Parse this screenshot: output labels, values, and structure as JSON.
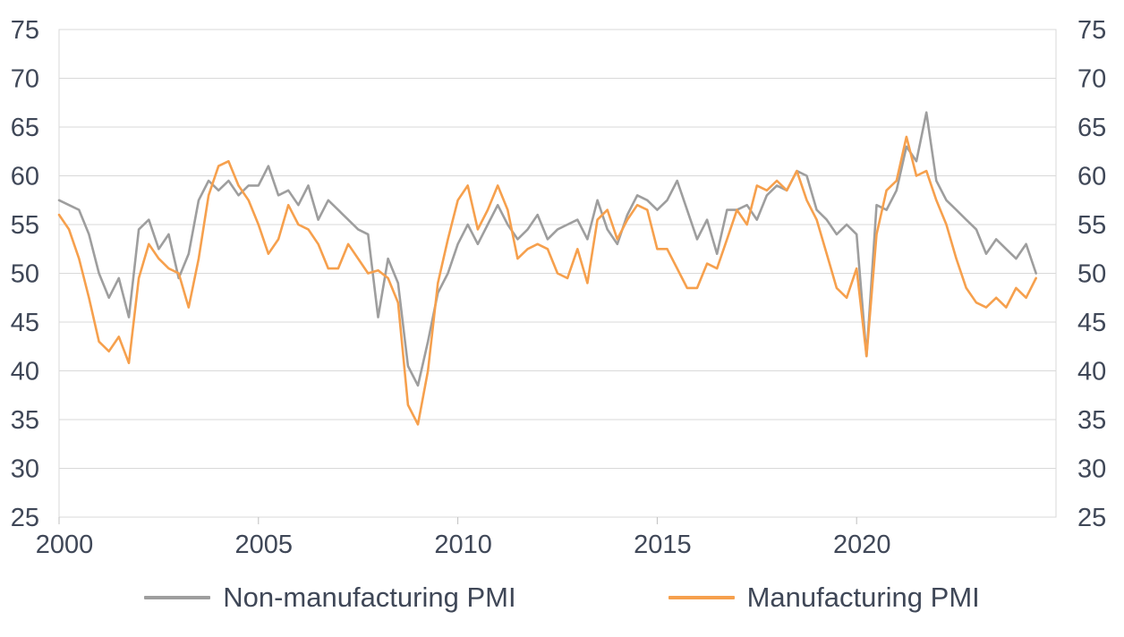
{
  "chart_data": {
    "type": "line",
    "title": "",
    "xlabel": "",
    "ylabel": "",
    "xlim": [
      2000,
      2025
    ],
    "ylim": [
      25,
      75
    ],
    "yticks": [
      25,
      30,
      35,
      40,
      45,
      50,
      55,
      60,
      65,
      70,
      75
    ],
    "xticks": [
      2000,
      2005,
      2010,
      2015,
      2020
    ],
    "grid": "horizontal",
    "right_axis": true,
    "legend_position": "bottom",
    "x_start": 2000,
    "x_step": 0.25,
    "colors": {
      "grid": "#d9d9d9",
      "border": "#d9d9d9",
      "tick": "#bfbfbf",
      "text": "#3f4757"
    },
    "series": [
      {
        "name": "Non-manufacturing PMI",
        "color": "#9e9e9e",
        "values": [
          57.5,
          57.0,
          56.5,
          54.0,
          50.0,
          47.5,
          49.5,
          45.5,
          54.5,
          55.5,
          52.5,
          54.0,
          49.5,
          52.0,
          57.5,
          59.5,
          58.5,
          59.5,
          58.0,
          59.0,
          59.0,
          61.0,
          58.0,
          58.5,
          57.0,
          59.0,
          55.5,
          57.5,
          56.5,
          55.5,
          54.5,
          54.0,
          45.5,
          51.5,
          49.0,
          40.5,
          38.5,
          43.0,
          48.0,
          50.0,
          53.0,
          55.0,
          53.0,
          55.0,
          57.0,
          55.0,
          53.5,
          54.5,
          56.0,
          53.5,
          54.5,
          55.0,
          55.5,
          53.5,
          57.5,
          54.5,
          53.0,
          56.0,
          58.0,
          57.5,
          56.5,
          57.5,
          59.5,
          56.5,
          53.5,
          55.5,
          52.0,
          56.5,
          56.5,
          57.0,
          55.5,
          58.0,
          59.0,
          58.5,
          60.5,
          60.0,
          56.5,
          55.5,
          54.0,
          55.0,
          54.0,
          41.5,
          57.0,
          56.5,
          58.5,
          63.0,
          61.5,
          66.5,
          59.5,
          57.5,
          56.5,
          55.5,
          54.5,
          52.0,
          53.5,
          52.5,
          51.5,
          53.0,
          50.0
        ]
      },
      {
        "name": "Manufacturing PMI",
        "color": "#f6a04d",
        "values": [
          56.0,
          54.5,
          51.5,
          47.5,
          43.0,
          42.0,
          43.5,
          40.8,
          49.5,
          53.0,
          51.5,
          50.5,
          50.0,
          46.5,
          51.5,
          58.0,
          61.0,
          61.5,
          59.0,
          57.5,
          55.0,
          52.0,
          53.5,
          57.0,
          55.0,
          54.5,
          53.0,
          50.5,
          50.5,
          53.0,
          51.5,
          50.0,
          50.3,
          49.5,
          47.0,
          36.5,
          34.5,
          40.0,
          49.0,
          53.5,
          57.5,
          59.0,
          54.5,
          56.5,
          59.0,
          56.5,
          51.5,
          52.5,
          53.0,
          52.5,
          50.0,
          49.5,
          52.5,
          49.0,
          55.5,
          56.5,
          53.5,
          55.5,
          57.0,
          56.5,
          52.5,
          52.5,
          50.5,
          48.5,
          48.5,
          51.0,
          50.5,
          53.5,
          56.5,
          55.0,
          59.0,
          58.5,
          59.5,
          58.5,
          60.5,
          57.5,
          55.5,
          52.0,
          48.5,
          47.5,
          50.5,
          41.5,
          54.0,
          58.5,
          59.5,
          64.0,
          60.0,
          60.5,
          57.5,
          55.0,
          51.5,
          48.5,
          47.0,
          46.5,
          47.5,
          46.5,
          48.5,
          47.5,
          49.5
        ]
      }
    ]
  },
  "legend": {
    "items": [
      {
        "label": "Non-manufacturing PMI"
      },
      {
        "label": "Manufacturing PMI"
      }
    ]
  }
}
